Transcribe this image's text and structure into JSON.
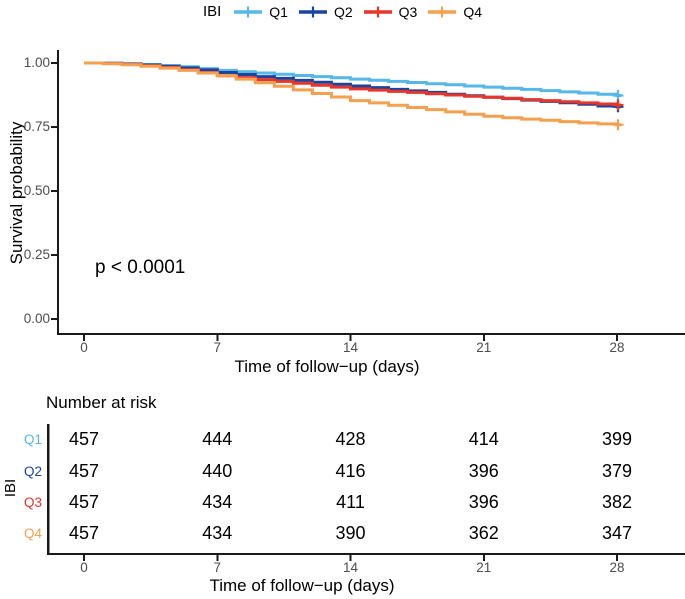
{
  "figure": {
    "legend": {
      "title": "IBI"
    },
    "main_plot": {
      "ylabel": "Survival probability",
      "xlabel": "Time of follow−up (days)",
      "p_value": "p < 0.0001",
      "y_tick_labels": [
        "1.00",
        "0.75",
        "0.50",
        "0.25",
        "0.00"
      ],
      "x_tick_labels": [
        "0",
        "7",
        "14",
        "21",
        "28"
      ]
    },
    "risk_table": {
      "title": "Number at risk",
      "axis_label": "IBI",
      "xlabel": "Time of follow−up (days)",
      "x_tick_labels": [
        "0",
        "7",
        "14",
        "21",
        "28"
      ]
    }
  },
  "chart_data": {
    "type": "line",
    "subtype": "kaplan-meier-step",
    "title": "",
    "xlabel": "Time of follow−up (days)",
    "ylabel": "Survival probability",
    "xlim": [
      0,
      28
    ],
    "ylim": [
      0,
      1
    ],
    "x_ticks": [
      0,
      7,
      14,
      21,
      28
    ],
    "y_ticks": [
      1.0,
      0.75,
      0.5,
      0.25,
      0.0
    ],
    "grid": false,
    "legend_position": "top",
    "legend_title": "IBI",
    "annotation": "p < 0.0001",
    "axis_color": "#1a1a1a",
    "tick_label_color": "#4d4d4d",
    "series": [
      {
        "name": "Q1",
        "color": "#56B7E8",
        "end_censor": true,
        "points": [
          [
            0,
            1.0
          ],
          [
            1,
            0.999
          ],
          [
            2,
            0.997
          ],
          [
            3,
            0.994
          ],
          [
            4,
            0.99
          ],
          [
            5,
            0.985
          ],
          [
            6,
            0.978
          ],
          [
            7,
            0.971
          ],
          [
            8,
            0.966
          ],
          [
            9,
            0.961
          ],
          [
            10,
            0.956
          ],
          [
            11,
            0.951
          ],
          [
            12,
            0.947
          ],
          [
            13,
            0.942
          ],
          [
            14,
            0.937
          ],
          [
            15,
            0.933
          ],
          [
            16,
            0.928
          ],
          [
            17,
            0.924
          ],
          [
            18,
            0.919
          ],
          [
            19,
            0.915
          ],
          [
            20,
            0.91
          ],
          [
            21,
            0.906
          ],
          [
            22,
            0.901
          ],
          [
            23,
            0.897
          ],
          [
            24,
            0.892
          ],
          [
            25,
            0.887
          ],
          [
            26,
            0.883
          ],
          [
            27,
            0.878
          ],
          [
            28,
            0.873
          ]
        ]
      },
      {
        "name": "Q2",
        "color": "#1D449C",
        "end_censor": true,
        "points": [
          [
            0,
            1.0
          ],
          [
            1,
            0.999
          ],
          [
            2,
            0.996
          ],
          [
            3,
            0.992
          ],
          [
            4,
            0.987
          ],
          [
            5,
            0.981
          ],
          [
            6,
            0.973
          ],
          [
            7,
            0.963
          ],
          [
            8,
            0.955
          ],
          [
            9,
            0.947
          ],
          [
            10,
            0.94
          ],
          [
            11,
            0.932
          ],
          [
            12,
            0.925
          ],
          [
            13,
            0.917
          ],
          [
            14,
            0.91
          ],
          [
            15,
            0.904
          ],
          [
            16,
            0.897
          ],
          [
            17,
            0.891
          ],
          [
            18,
            0.885
          ],
          [
            19,
            0.878
          ],
          [
            20,
            0.872
          ],
          [
            21,
            0.866
          ],
          [
            22,
            0.861
          ],
          [
            23,
            0.855
          ],
          [
            24,
            0.85
          ],
          [
            25,
            0.845
          ],
          [
            26,
            0.839
          ],
          [
            27,
            0.832
          ],
          [
            28,
            0.829
          ]
        ]
      },
      {
        "name": "Q3",
        "color": "#E6352B",
        "end_censor": true,
        "points": [
          [
            0,
            1.0
          ],
          [
            1,
            0.998
          ],
          [
            2,
            0.995
          ],
          [
            3,
            0.99
          ],
          [
            4,
            0.983
          ],
          [
            5,
            0.974
          ],
          [
            6,
            0.963
          ],
          [
            7,
            0.95
          ],
          [
            8,
            0.943
          ],
          [
            9,
            0.935
          ],
          [
            10,
            0.928
          ],
          [
            11,
            0.921
          ],
          [
            12,
            0.913
          ],
          [
            13,
            0.906
          ],
          [
            14,
            0.899
          ],
          [
            15,
            0.894
          ],
          [
            16,
            0.889
          ],
          [
            17,
            0.885
          ],
          [
            18,
            0.88
          ],
          [
            19,
            0.875
          ],
          [
            20,
            0.87
          ],
          [
            21,
            0.866
          ],
          [
            22,
            0.862
          ],
          [
            23,
            0.857
          ],
          [
            24,
            0.853
          ],
          [
            25,
            0.849
          ],
          [
            26,
            0.844
          ],
          [
            27,
            0.84
          ],
          [
            28,
            0.836
          ]
        ]
      },
      {
        "name": "Q4",
        "color": "#F5A04E",
        "end_censor": true,
        "points": [
          [
            0,
            1.0
          ],
          [
            1,
            0.997
          ],
          [
            2,
            0.993
          ],
          [
            3,
            0.987
          ],
          [
            4,
            0.98
          ],
          [
            5,
            0.971
          ],
          [
            6,
            0.961
          ],
          [
            7,
            0.95
          ],
          [
            8,
            0.937
          ],
          [
            9,
            0.923
          ],
          [
            10,
            0.909
          ],
          [
            11,
            0.895
          ],
          [
            12,
            0.881
          ],
          [
            13,
            0.867
          ],
          [
            14,
            0.853
          ],
          [
            15,
            0.844
          ],
          [
            16,
            0.835
          ],
          [
            17,
            0.826
          ],
          [
            18,
            0.818
          ],
          [
            19,
            0.809
          ],
          [
            20,
            0.8
          ],
          [
            21,
            0.792
          ],
          [
            22,
            0.786
          ],
          [
            23,
            0.781
          ],
          [
            24,
            0.776
          ],
          [
            25,
            0.771
          ],
          [
            26,
            0.766
          ],
          [
            27,
            0.762
          ],
          [
            28,
            0.759
          ]
        ]
      }
    ],
    "number_at_risk": {
      "title": "Number at risk",
      "group_label": "IBI",
      "times": [
        0,
        7,
        14,
        21,
        28
      ],
      "rows": [
        {
          "label": "Q1",
          "color": "#56B7E8",
          "values": [
            457,
            444,
            428,
            414,
            399
          ]
        },
        {
          "label": "Q2",
          "color": "#1D449C",
          "values": [
            457,
            440,
            416,
            396,
            379
          ]
        },
        {
          "label": "Q3",
          "color": "#E6352B",
          "values": [
            457,
            434,
            411,
            396,
            382
          ]
        },
        {
          "label": "Q4",
          "color": "#F5A04E",
          "values": [
            457,
            434,
            390,
            362,
            347
          ]
        }
      ]
    }
  }
}
